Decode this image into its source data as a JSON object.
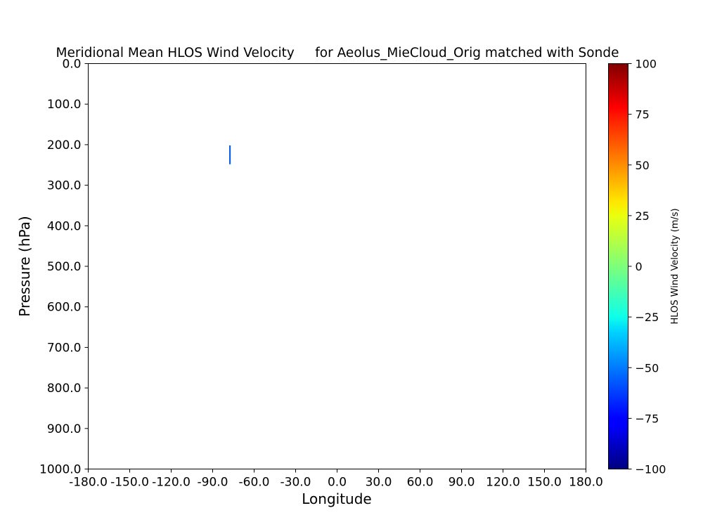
{
  "chart_data": {
    "type": "heatmap",
    "title": "Meridional Mean HLOS Wind Velocity     for Aeolus_MieCloud_Orig matched with Sonde",
    "xlabel": "Longitude",
    "ylabel": "Pressure (hPa)",
    "xlim": [
      -180,
      180
    ],
    "ylim": [
      1000,
      0
    ],
    "y_inverted": true,
    "xticks": [
      "-180.0",
      "-150.0",
      "-120.0",
      "-90.0",
      "-60.0",
      "-30.0",
      "0.0",
      "30.0",
      "60.0",
      "90.0",
      "120.0",
      "150.0",
      "180.0"
    ],
    "yticks": [
      "0.0",
      "100.0",
      "200.0",
      "300.0",
      "400.0",
      "500.0",
      "600.0",
      "700.0",
      "800.0",
      "900.0",
      "1000.0"
    ],
    "cells": [
      {
        "lon": -77.5,
        "p_top": 200,
        "p_bottom": 250,
        "value": -55,
        "color": "#0f5ee6"
      }
    ],
    "colorbar": {
      "label": "HLOS Wind Velocity (m/s)",
      "colormap": "jet",
      "range": [
        -100,
        100
      ],
      "ticks": [
        "100",
        "75",
        "50",
        "25",
        "0",
        "−25",
        "−50",
        "−75",
        "−100"
      ]
    },
    "grid": false
  }
}
